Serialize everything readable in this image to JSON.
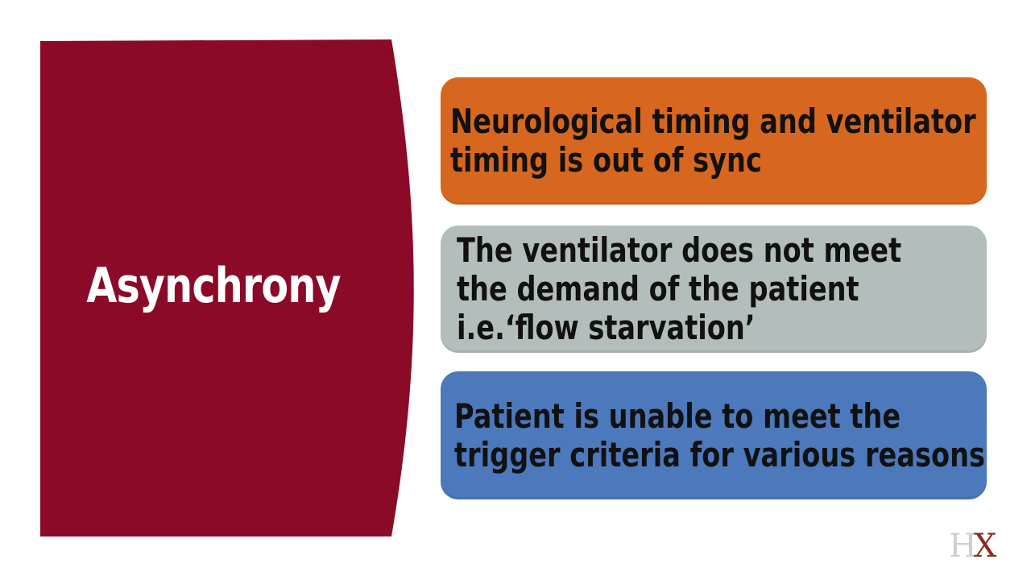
{
  "title": "Asynchrony",
  "colors": {
    "title_panel": "#8b0a27",
    "card_orange": "#d7671f",
    "card_gray": "#b2bdbc",
    "card_blue": "#4b79bb"
  },
  "cards": [
    {
      "lines": [
        "Neurological timing and ventilator",
        "timing is out of sync"
      ]
    },
    {
      "lines": [
        "The ventilator does not meet",
        "the demand of the patient",
        "i.e.‘flow starvation’"
      ]
    },
    {
      "lines": [
        "Patient is unable to meet the",
        "trigger criteria for various reasons"
      ]
    }
  ],
  "logo": {
    "letter_1": "H",
    "letter_2": "X"
  }
}
